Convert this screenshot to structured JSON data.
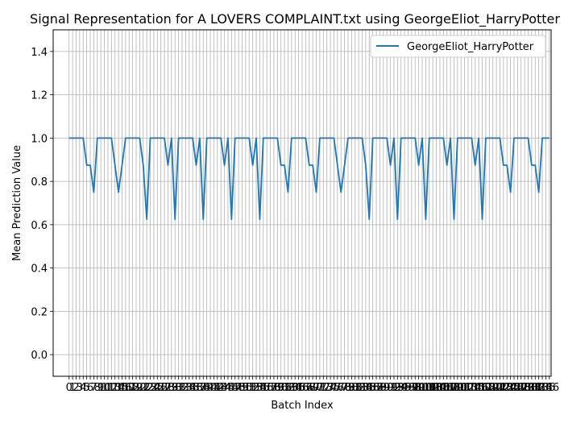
{
  "chart_data": {
    "type": "line",
    "title": "Signal Representation for A LOVERS COMPLAINT.txt using GeorgeEliot_HarryPotter",
    "xlabel": "Batch Index",
    "ylabel": "Mean Prediction Value",
    "xlim": [
      -4.5,
      136.5
    ],
    "ylim": [
      -0.1,
      1.5
    ],
    "yticks": [
      0.0,
      0.2,
      0.4,
      0.6,
      0.8,
      1.0,
      1.2,
      1.4
    ],
    "grid": true,
    "legend_position": "top-right",
    "series": [
      {
        "name": "GeorgeEliot_HarryPotter",
        "color": "#1f77b4",
        "values": [
          1.0,
          1.0,
          1.0,
          1.0,
          1.0,
          0.875,
          0.875,
          0.75,
          1.0,
          1.0,
          1.0,
          1.0,
          1.0,
          0.875,
          0.75,
          0.875,
          1.0,
          1.0,
          1.0,
          1.0,
          1.0,
          0.875,
          0.625,
          1.0,
          1.0,
          1.0,
          1.0,
          1.0,
          0.875,
          1.0,
          0.625,
          1.0,
          1.0,
          1.0,
          1.0,
          1.0,
          0.875,
          1.0,
          0.625,
          1.0,
          1.0,
          1.0,
          1.0,
          1.0,
          0.875,
          1.0,
          0.625,
          1.0,
          1.0,
          1.0,
          1.0,
          1.0,
          0.875,
          1.0,
          0.625,
          1.0,
          1.0,
          1.0,
          1.0,
          1.0,
          0.875,
          0.875,
          0.75,
          1.0,
          1.0,
          1.0,
          1.0,
          1.0,
          0.875,
          0.875,
          0.75,
          1.0,
          1.0,
          1.0,
          1.0,
          1.0,
          0.875,
          0.75,
          0.875,
          1.0,
          1.0,
          1.0,
          1.0,
          1.0,
          0.875,
          0.625,
          1.0,
          1.0,
          1.0,
          1.0,
          1.0,
          0.875,
          1.0,
          0.625,
          1.0,
          1.0,
          1.0,
          1.0,
          1.0,
          0.875,
          1.0,
          0.625,
          1.0,
          1.0,
          1.0,
          1.0,
          1.0,
          0.875,
          1.0,
          0.625,
          1.0,
          1.0,
          1.0,
          1.0,
          1.0,
          0.875,
          1.0,
          0.625,
          1.0,
          1.0,
          1.0,
          1.0,
          1.0,
          0.875,
          0.875,
          0.75,
          1.0,
          1.0,
          1.0,
          1.0,
          1.0,
          0.875,
          0.875,
          0.75,
          1.0,
          1.0,
          1.0
        ]
      }
    ]
  }
}
